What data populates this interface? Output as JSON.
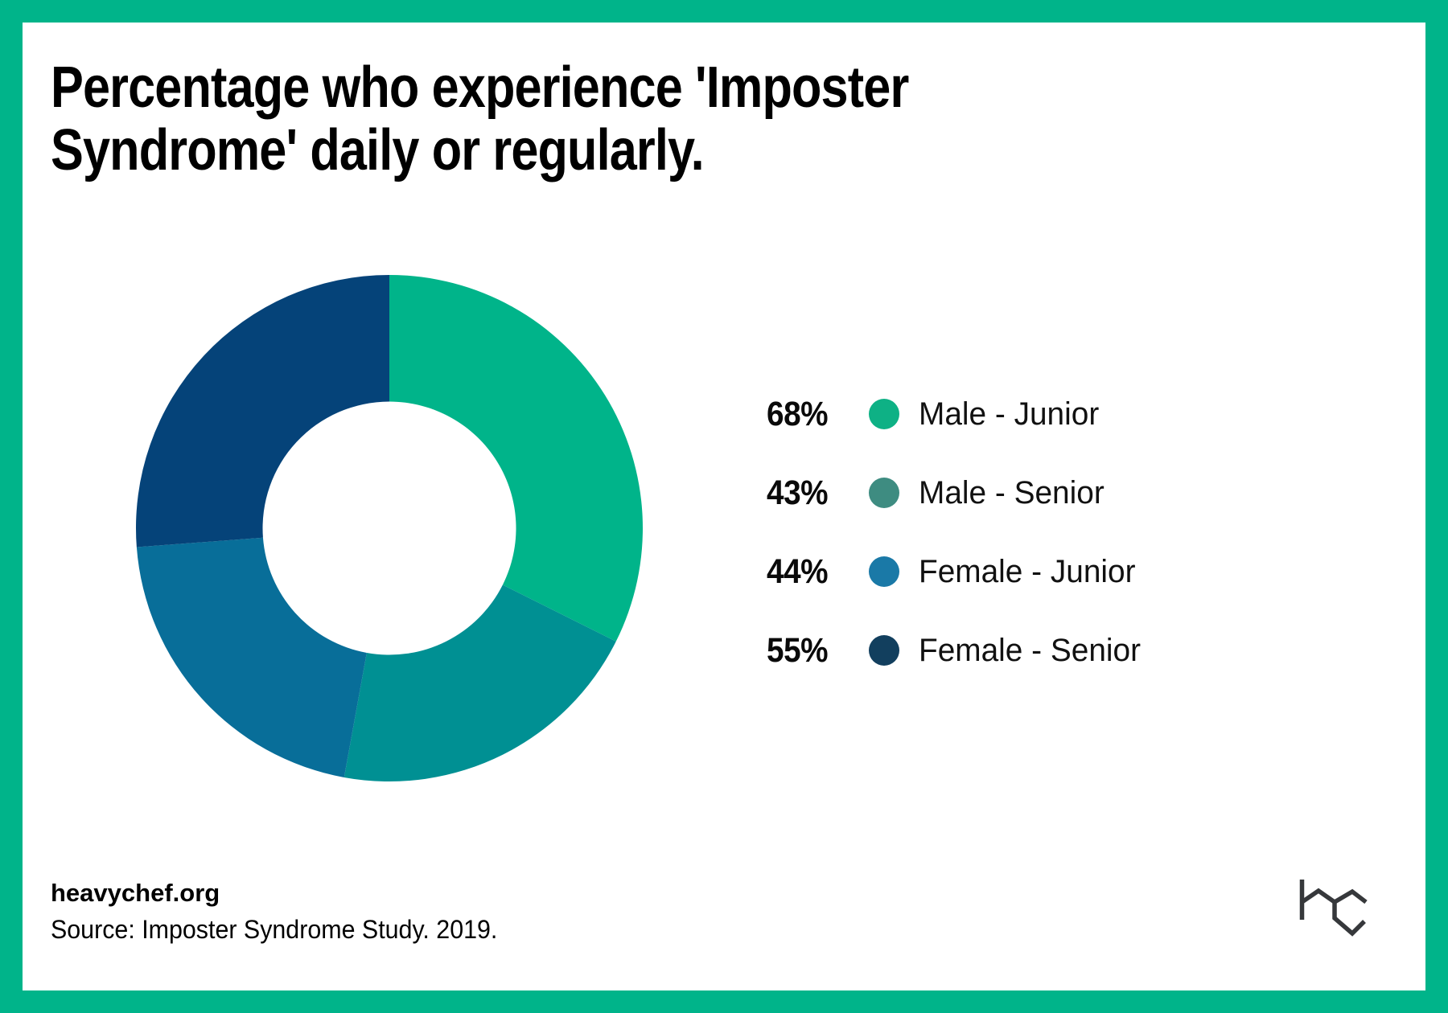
{
  "frame": {
    "border_color": "#00b48a",
    "card_background": "#ffffff"
  },
  "header": {
    "title_line1": "Percentage who experience 'Imposter",
    "title_line2": "Syndrome' daily or regularly."
  },
  "chart_data": {
    "type": "pie",
    "style": "donut",
    "title": "Percentage who experience 'Imposter Syndrome' daily or regularly.",
    "start_angle_deg": 0,
    "direction": "clockwise",
    "inner_radius_ratio": 0.5,
    "legend_position": "right",
    "series": [
      {
        "label": "Male - Junior",
        "value": 68,
        "display_value": "68%",
        "slice_color": "#00b48a",
        "dot_color": "#0eb185"
      },
      {
        "label": "Male - Senior",
        "value": 43,
        "display_value": "43%",
        "slice_color": "#009093",
        "dot_color": "#3e8c81"
      },
      {
        "label": "Female - Junior",
        "value": 44,
        "display_value": "44%",
        "slice_color": "#086e99",
        "dot_color": "#1a79a7"
      },
      {
        "label": "Female - Senior",
        "value": 55,
        "display_value": "55%",
        "slice_color": "#054379",
        "dot_color": "#123f5e"
      }
    ]
  },
  "footer": {
    "website": "heavychef.org",
    "source": "Source: Imposter Syndrome Study. 2019.",
    "logo": "heavy-chef-hc-monogram",
    "logo_color": "#36383b"
  }
}
